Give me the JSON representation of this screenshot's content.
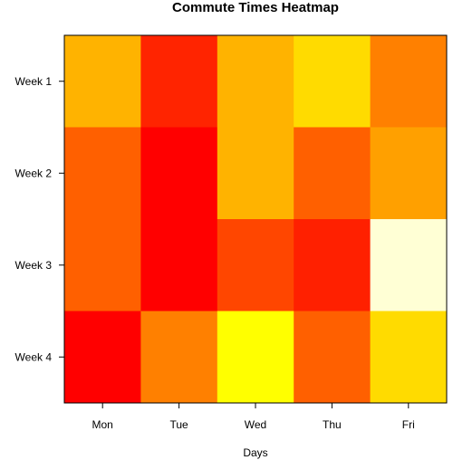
{
  "chart_data": {
    "type": "heatmap",
    "title": "Commute Times Heatmap",
    "xlabel": "Days",
    "ylabel": "",
    "x_categories": [
      "Mon",
      "Tue",
      "Wed",
      "Thu",
      "Fri"
    ],
    "y_categories": [
      "Week 1",
      "Week 2",
      "Week 3",
      "Week 4"
    ],
    "color_scale": "heat",
    "legend": "none",
    "cells": [
      {
        "row": "Week 1",
        "col": "Mon",
        "color": "#FFB300"
      },
      {
        "row": "Week 1",
        "col": "Tue",
        "color": "#FF2400"
      },
      {
        "row": "Week 1",
        "col": "Wed",
        "color": "#FFB300"
      },
      {
        "row": "Week 1",
        "col": "Thu",
        "color": "#FFDB00"
      },
      {
        "row": "Week 1",
        "col": "Fri",
        "color": "#FF8000"
      },
      {
        "row": "Week 2",
        "col": "Mon",
        "color": "#FF6000"
      },
      {
        "row": "Week 2",
        "col": "Tue",
        "color": "#FF0000"
      },
      {
        "row": "Week 2",
        "col": "Wed",
        "color": "#FFB300"
      },
      {
        "row": "Week 2",
        "col": "Thu",
        "color": "#FF6000"
      },
      {
        "row": "Week 2",
        "col": "Fri",
        "color": "#FFA000"
      },
      {
        "row": "Week 3",
        "col": "Mon",
        "color": "#FF6000"
      },
      {
        "row": "Week 3",
        "col": "Tue",
        "color": "#FF0000"
      },
      {
        "row": "Week 3",
        "col": "Wed",
        "color": "#FF4600"
      },
      {
        "row": "Week 3",
        "col": "Thu",
        "color": "#FF2000"
      },
      {
        "row": "Week 3",
        "col": "Fri",
        "color": "#FFFFD5"
      },
      {
        "row": "Week 4",
        "col": "Mon",
        "color": "#FF0000"
      },
      {
        "row": "Week 4",
        "col": "Tue",
        "color": "#FF8000"
      },
      {
        "row": "Week 4",
        "col": "Wed",
        "color": "#FFFF00"
      },
      {
        "row": "Week 4",
        "col": "Thu",
        "color": "#FF6000"
      },
      {
        "row": "Week 4",
        "col": "Fri",
        "color": "#FFDB00"
      }
    ]
  }
}
